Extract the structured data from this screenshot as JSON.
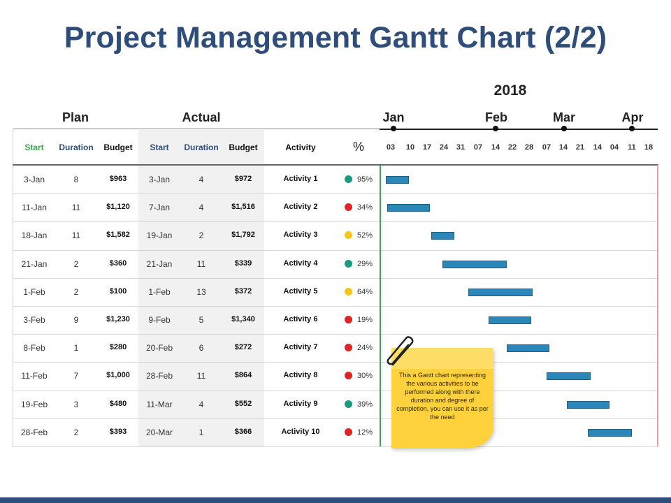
{
  "title": "Project Management Gantt Chart (2/2)",
  "year": "2018",
  "groups": {
    "plan": "Plan",
    "actual": "Actual"
  },
  "columns": {
    "plan_start": "Start",
    "plan_duration": "Duration",
    "plan_budget": "Budget",
    "actual_start": "Start",
    "actual_duration": "Duration",
    "actual_budget": "Budget",
    "activity": "Activity",
    "percent": "%"
  },
  "colors": {
    "title": "#2e4d7b",
    "plan_header": "#3ea34a",
    "actual_header": "#2e4d7b",
    "bar": "#2b87b8",
    "status_green": "#1a9a80",
    "status_red": "#e02424",
    "status_yellow": "#f5c518"
  },
  "timeline": {
    "months": [
      "Jan",
      "Feb",
      "Mar",
      "Apr"
    ],
    "days": [
      "03",
      "10",
      "17",
      "24",
      "31",
      "07",
      "14",
      "22",
      "28",
      "07",
      "14",
      "21",
      "14",
      "04",
      "11",
      "18"
    ]
  },
  "rows": [
    {
      "plan_start": "3-Jan",
      "plan_duration": "8",
      "plan_budget": "$963",
      "actual_start": "3-Jan",
      "actual_duration": "4",
      "actual_budget": "$972",
      "activity": "Activity 1",
      "percent": "95%",
      "status": "green"
    },
    {
      "plan_start": "11-Jan",
      "plan_duration": "11",
      "plan_budget": "$1,120",
      "actual_start": "7-Jan",
      "actual_duration": "4",
      "actual_budget": "$1,516",
      "activity": "Activity 2",
      "percent": "34%",
      "status": "red"
    },
    {
      "plan_start": "18-Jan",
      "plan_duration": "11",
      "plan_budget": "$1,582",
      "actual_start": "19-Jan",
      "actual_duration": "2",
      "actual_budget": "$1,792",
      "activity": "Activity 3",
      "percent": "52%",
      "status": "yellow"
    },
    {
      "plan_start": "21-Jan",
      "plan_duration": "2",
      "plan_budget": "$360",
      "actual_start": "21-Jan",
      "actual_duration": "11",
      "actual_budget": "$339",
      "activity": "Activity 4",
      "percent": "29%",
      "status": "green"
    },
    {
      "plan_start": "1-Feb",
      "plan_duration": "2",
      "plan_budget": "$100",
      "actual_start": "1-Feb",
      "actual_duration": "13",
      "actual_budget": "$372",
      "activity": "Activity 5",
      "percent": "64%",
      "status": "yellow"
    },
    {
      "plan_start": "3-Feb",
      "plan_duration": "9",
      "plan_budget": "$1,230",
      "actual_start": "9-Feb",
      "actual_duration": "5",
      "actual_budget": "$1,340",
      "activity": "Activity 6",
      "percent": "19%",
      "status": "red"
    },
    {
      "plan_start": "8-Feb",
      "plan_duration": "1",
      "plan_budget": "$280",
      "actual_start": "20-Feb",
      "actual_duration": "6",
      "actual_budget": "$272",
      "activity": "Activity 7",
      "percent": "24%",
      "status": "red"
    },
    {
      "plan_start": "11-Feb",
      "plan_duration": "7",
      "plan_budget": "$1,000",
      "actual_start": "28-Feb",
      "actual_duration": "11",
      "actual_budget": "$864",
      "activity": "Activity 8",
      "percent": "30%",
      "status": "red"
    },
    {
      "plan_start": "19-Feb",
      "plan_duration": "3",
      "plan_budget": "$480",
      "actual_start": "11-Mar",
      "actual_duration": "4",
      "actual_budget": "$552",
      "activity": "Activity 9",
      "percent": "39%",
      "status": "green"
    },
    {
      "plan_start": "28-Feb",
      "plan_duration": "2",
      "plan_budget": "$393",
      "actual_start": "20-Mar",
      "actual_duration": "1",
      "actual_budget": "$366",
      "activity": "Activity 10",
      "percent": "12%",
      "status": "red"
    }
  ],
  "chart_data": {
    "type": "gantt",
    "title": "Project Management Gantt Chart (2/2)",
    "x_axis": {
      "year": "2018",
      "months": [
        "Jan",
        "Feb",
        "Mar",
        "Apr"
      ]
    },
    "tasks": [
      {
        "name": "Activity 1",
        "start_day": 3,
        "end_day": 17
      },
      {
        "name": "Activity 2",
        "start_day": 4,
        "end_day": 31
      },
      {
        "name": "Activity 3",
        "start_day": 33,
        "end_day": 47
      },
      {
        "name": "Activity 4",
        "start_day": 40,
        "end_day": 81
      },
      {
        "name": "Activity 5",
        "start_day": 57,
        "end_day": 98
      },
      {
        "name": "Activity 6",
        "start_day": 70,
        "end_day": 97
      },
      {
        "name": "Activity 7",
        "start_day": 82,
        "end_day": 109
      },
      {
        "name": "Activity 8",
        "start_day": 108,
        "end_day": 136
      },
      {
        "name": "Activity 9",
        "start_day": 121,
        "end_day": 148
      },
      {
        "name": "Activity 10",
        "start_day": 135,
        "end_day": 163
      }
    ],
    "day_range": [
      0,
      180
    ]
  },
  "note": {
    "text": "This a Gantt chart representing the various activities to be performed along with there duration and degree of completion, you can use it as per the need"
  }
}
